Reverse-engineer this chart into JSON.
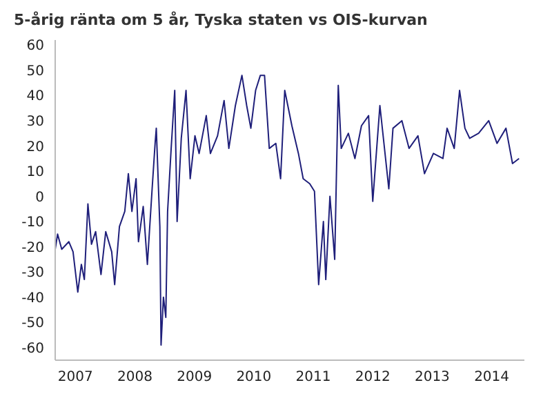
{
  "chart_data": {
    "type": "line",
    "title": "5-årig ränta om 5 år, Tyska staten vs OIS-kurvan",
    "x": [
      2006.66,
      2006.7,
      2006.77,
      2006.89,
      2006.96,
      2007.04,
      2007.1,
      2007.15,
      2007.21,
      2007.27,
      2007.34,
      2007.43,
      2007.51,
      2007.61,
      2007.66,
      2007.74,
      2007.83,
      2007.89,
      2007.95,
      2008.02,
      2008.06,
      2008.14,
      2008.21,
      2008.29,
      2008.34,
      2008.36,
      2008.42,
      2008.44,
      2008.48,
      2008.52,
      2008.55,
      2008.61,
      2008.67,
      2008.71,
      2008.78,
      2008.86,
      2008.93,
      2009.01,
      2009.08,
      2009.2,
      2009.27,
      2009.39,
      2009.5,
      2009.58,
      2009.69,
      2009.8,
      2009.88,
      2009.95,
      2010.03,
      2010.11,
      2010.18,
      2010.26,
      2010.37,
      2010.45,
      2010.52,
      2010.64,
      2010.75,
      2010.83,
      2010.94,
      2011.02,
      2011.09,
      2011.17,
      2011.21,
      2011.28,
      2011.36,
      2011.42,
      2011.47,
      2011.59,
      2011.7,
      2011.81,
      2011.93,
      2012,
      2012.12,
      2012.27,
      2012.34,
      2012.49,
      2012.61,
      2012.76,
      2012.87,
      2013.02,
      2013.18,
      2013.25,
      2013.37,
      2013.46,
      2013.55,
      2013.63,
      2013.78,
      2013.95,
      2014.09,
      2014.24,
      2014.35,
      2014.46
    ],
    "series": [
      {
        "color": "#1f1f7a",
        "values": [
          -21,
          -15,
          -21,
          -18,
          -22,
          -38,
          -27,
          -33,
          -3,
          -19,
          -14,
          -31,
          -14,
          -22,
          -35,
          -12,
          -6,
          9,
          -6,
          7,
          -18,
          -4,
          -27,
          3,
          21,
          27,
          -12,
          -59,
          -40,
          -48,
          -6,
          19,
          42,
          -10,
          23,
          42,
          7,
          24,
          17,
          32,
          17,
          24,
          38,
          19,
          36,
          48,
          36,
          27,
          42,
          48,
          48,
          19,
          21,
          7,
          42,
          28,
          17,
          7,
          5,
          2,
          -35,
          -10,
          -33,
          0,
          -25,
          44,
          19,
          25,
          15,
          28,
          32,
          -2,
          36,
          3,
          27,
          30,
          19,
          24,
          9,
          17,
          15,
          27,
          19,
          42,
          27,
          23,
          25,
          30,
          21,
          27,
          13,
          15
        ]
      }
    ],
    "xlim": [
      2006.66,
      2014.55
    ],
    "xticks": [
      2007,
      2008,
      2009,
      2010,
      2011,
      2012,
      2013,
      2014
    ],
    "ylim": [
      -65,
      62
    ],
    "yticks": [
      -60,
      -50,
      -40,
      -30,
      -20,
      -10,
      0,
      10,
      20,
      30,
      40,
      50,
      60
    ],
    "grid": false,
    "legend": false,
    "marker": "none",
    "line_style": "solid"
  }
}
